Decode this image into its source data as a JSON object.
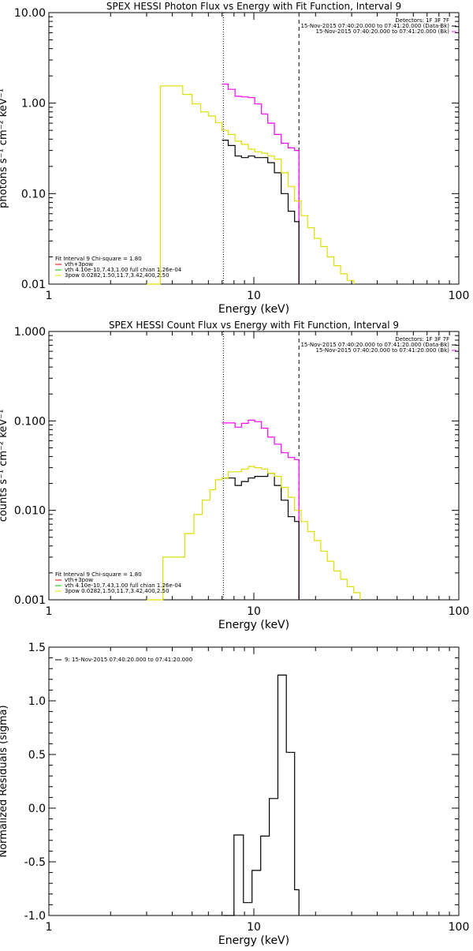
{
  "chart_data": [
    {
      "type": "line",
      "title": "SPEX HESSI Photon Flux vs Energy with Fit Function, Interval 9",
      "xlabel": "Energy (keV)",
      "ylabel": "photons s⁻¹ cm⁻² keV⁻¹",
      "x_scale": "log",
      "y_scale": "log",
      "xlim": [
        1,
        100
      ],
      "ylim": [
        0.01,
        10
      ],
      "x_ticks": [
        "1",
        "10",
        "100"
      ],
      "y_ticks": [
        "0.01",
        "0.10",
        "1.00",
        "10.00"
      ],
      "legend_right": [
        "Detectors: 1F 3F 7F",
        "15-Nov-2015 07:40:20.000 to 07:41:20.000 (Data-Bk)",
        "15-Nov-2015 07:40:20.000 to 07:41:20.000 (Bk)"
      ],
      "legend_left": [
        "Fit Interval 9   Chi-square = 1.80",
        "vth+3pow",
        "vth 4.10e-10,7.43,1.00  full chian 1.26e-04",
        "3pow 0.0282,1.50,11.7,3.42,400,2.50"
      ],
      "vlines": [
        {
          "x": 7.1,
          "style": "dotted"
        },
        {
          "x": 16.6,
          "style": "dashed"
        }
      ],
      "series": [
        {
          "name": "vth+3pow",
          "color": "#ff00ff",
          "x": [
            7.0,
            7.5,
            8.1,
            8.7,
            9.4,
            10.1,
            10.9,
            11.7,
            12.6,
            13.6,
            14.7,
            15.8,
            16.6
          ],
          "y": [
            1.62,
            1.42,
            1.19,
            1.17,
            1.15,
            0.98,
            0.76,
            0.6,
            0.45,
            0.36,
            0.32,
            0.3,
            0.01
          ]
        },
        {
          "name": "vth 4.10e-10,7.43,1.00",
          "color": "#000000",
          "x": [
            7.0,
            7.5,
            8.1,
            8.7,
            9.4,
            10.1,
            10.9,
            11.7,
            12.6,
            13.6,
            14.7,
            15.8,
            16.6
          ],
          "y": [
            0.39,
            0.34,
            0.26,
            0.25,
            0.26,
            0.25,
            0.25,
            0.22,
            0.17,
            0.1,
            0.064,
            0.049,
            0.01
          ]
        },
        {
          "name": "3pow 0.0282,1.50,11.7,3.42,400,2.50",
          "color": "#dddd00",
          "x": [
            3.0,
            3.5,
            4.0,
            4.5,
            5.0,
            5.5,
            6.0,
            6.5,
            7.0,
            7.5,
            8.1,
            8.7,
            9.4,
            10.1,
            10.9,
            11.7,
            12.6,
            13.6,
            14.7,
            15.8,
            17.0,
            18.3,
            19.7,
            21.2,
            22.8,
            24.6,
            26.5,
            28.5,
            30.7
          ],
          "y": [
            0.01,
            1.55,
            1.55,
            1.25,
            0.98,
            0.8,
            0.72,
            0.61,
            0.5,
            0.45,
            0.38,
            0.35,
            0.31,
            0.29,
            0.28,
            0.26,
            0.24,
            0.17,
            0.12,
            0.083,
            0.057,
            0.042,
            0.032,
            0.026,
            0.02,
            0.016,
            0.013,
            0.011,
            0.01
          ]
        }
      ]
    },
    {
      "type": "line",
      "title": "SPEX HESSI Count Flux vs Energy with Fit Function, Interval 9",
      "xlabel": "Energy (keV)",
      "ylabel": "counts s⁻¹ cm⁻² keV⁻¹",
      "x_scale": "log",
      "y_scale": "log",
      "xlim": [
        1,
        100
      ],
      "ylim": [
        0.001,
        1
      ],
      "x_ticks": [
        "1",
        "10",
        "100"
      ],
      "y_ticks": [
        "0.001",
        "0.010",
        "0.100",
        "1.000"
      ],
      "legend_right": [
        "Detectors: 1F 3F 7F",
        "15-Nov-2015 07:40:20.000 to 07:41:20.000 (Data-Bk)",
        "15-Nov-2015 07:40:20.000 to 07:41:20.000 (Bk)"
      ],
      "legend_left": [
        "Fit Interval 9   Chi-square = 1.80",
        "vth+3pow",
        "vth 4.10e-10,7.43,1.00  full chian 1.26e-04",
        "3pow 0.0282,1.50,11.7,3.42,400,2.50"
      ],
      "vlines": [
        {
          "x": 7.1,
          "style": "dotted"
        },
        {
          "x": 16.6,
          "style": "dashed"
        }
      ],
      "series": [
        {
          "name": "vth+3pow",
          "color": "#ff00ff",
          "x": [
            7.0,
            7.5,
            8.1,
            8.7,
            9.4,
            10.1,
            10.9,
            11.7,
            12.6,
            13.6,
            14.7,
            15.8,
            16.6
          ],
          "y": [
            0.095,
            0.095,
            0.085,
            0.094,
            0.102,
            0.098,
            0.083,
            0.066,
            0.055,
            0.044,
            0.039,
            0.037,
            0.001
          ]
        },
        {
          "name": "vth 4.10e-10,7.43,1.00",
          "color": "#000000",
          "x": [
            7.0,
            7.5,
            8.1,
            8.7,
            9.4,
            10.1,
            10.9,
            11.7,
            12.6,
            13.6,
            14.7,
            15.8,
            16.6
          ],
          "y": [
            0.023,
            0.023,
            0.019,
            0.021,
            0.023,
            0.024,
            0.024,
            0.026,
            0.019,
            0.013,
            0.0085,
            0.0075,
            0.001
          ]
        },
        {
          "name": "3pow 0.0282,1.50,11.7,3.42,400,2.50",
          "color": "#dddd00",
          "x": [
            3.0,
            3.6,
            4.1,
            4.6,
            5.1,
            5.6,
            6.1,
            6.5,
            7.0,
            7.5,
            8.1,
            8.7,
            9.4,
            10.1,
            10.9,
            11.7,
            12.6,
            13.6,
            14.7,
            15.8,
            17.0,
            18.3,
            19.7,
            21.2,
            22.8,
            24.6,
            26.5,
            28.5,
            30.7,
            33.0
          ],
          "y": [
            0.001,
            0.003,
            0.003,
            0.0055,
            0.009,
            0.013,
            0.017,
            0.022,
            0.023,
            0.027,
            0.027,
            0.029,
            0.031,
            0.03,
            0.029,
            0.026,
            0.024,
            0.018,
            0.014,
            0.01,
            0.0075,
            0.0058,
            0.0046,
            0.0035,
            0.0027,
            0.0021,
            0.0017,
            0.0014,
            0.0012,
            0.001
          ]
        }
      ]
    },
    {
      "type": "line",
      "title": "",
      "xlabel": "Energy (keV)",
      "ylabel": "Normalized Residuals (sigma)",
      "x_scale": "log",
      "y_scale": "linear",
      "xlim": [
        1,
        100
      ],
      "ylim": [
        -1.0,
        1.5
      ],
      "x_ticks": [
        "1",
        "10",
        "100"
      ],
      "y_ticks": [
        "-1.0",
        "-0.5",
        "0.0",
        "0.5",
        "1.0",
        "1.5"
      ],
      "legend_left": [
        "9: 15-Nov-2015 07:40:20.000 to 07:41:20.000"
      ],
      "series": [
        {
          "name": "9: 15-Nov-2015 07:40:20.000 to 07:41:20.000",
          "color": "#000000",
          "x": [
            7.1,
            8.0,
            8.9,
            9.8,
            10.8,
            11.9,
            13.1,
            14.4,
            15.8,
            16.6
          ],
          "y": [
            -1.0,
            -0.25,
            -0.88,
            -0.58,
            -0.26,
            0.09,
            1.24,
            0.52,
            -0.76,
            -1.0
          ]
        }
      ]
    }
  ]
}
